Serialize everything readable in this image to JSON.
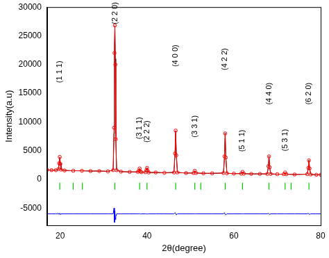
{
  "chart_data": {
    "type": "line",
    "x_label": "2θ(degree)",
    "y_label": "Intensity(a.u)",
    "xlim": [
      17,
      80
    ],
    "xticks": [
      20,
      40,
      60,
      80
    ],
    "ylim": [
      -8000,
      30000
    ],
    "yticks": [
      -5000,
      0,
      5000,
      10000,
      15000,
      20000,
      25000,
      30000
    ],
    "grid": false,
    "x": [
      17,
      18,
      19,
      19.6,
      19.75,
      19.9,
      20.05,
      20.2,
      21,
      23,
      25,
      27,
      29,
      31,
      32.2,
      32.4,
      32.5,
      32.6,
      32.7,
      32.8,
      33,
      34,
      36,
      37.9,
      38.15,
      38.3,
      38.45,
      38.7,
      39.6,
      39.85,
      40.0,
      40.15,
      40.4,
      42,
      44,
      46.2,
      46.45,
      46.6,
      46.75,
      47.0,
      49,
      50.7,
      51.0,
      51.3,
      53,
      55,
      57.6,
      57.85,
      58.0,
      58.15,
      58.4,
      60,
      61.7,
      62.0,
      62.3,
      64,
      66,
      67.7,
      67.95,
      68.1,
      68.25,
      68.5,
      70,
      71.5,
      71.8,
      72.1,
      74,
      76.9,
      77.15,
      77.3,
      77.45,
      77.7,
      79,
      80
    ],
    "series": [
      {
        "color": "#ff0000",
        "marker": "circle",
        "line_style": "solid",
        "values": [
          1650,
          1600,
          1600,
          1800,
          2800,
          3900,
          2700,
          1700,
          1550,
          1500,
          1500,
          1450,
          1450,
          1400,
          1600,
          9000,
          22000,
          26800,
          20000,
          7000,
          1600,
          1350,
          1300,
          1300,
          1500,
          1900,
          1400,
          1250,
          1250,
          1600,
          2000,
          1500,
          1200,
          1200,
          1150,
          1200,
          4500,
          8500,
          4200,
          1200,
          1100,
          1100,
          1500,
          1100,
          1050,
          1050,
          1100,
          4000,
          8000,
          3800,
          1050,
          1000,
          1000,
          1300,
          1000,
          950,
          950,
          950,
          2300,
          4000,
          2100,
          950,
          900,
          900,
          1200,
          900,
          850,
          900,
          2000,
          3300,
          1900,
          850,
          800,
          800
        ]
      },
      {
        "color": "#000000",
        "marker": "none",
        "line_style": "solid",
        "values": [
          1650,
          1600,
          1600,
          1750,
          2900,
          3800,
          2800,
          1700,
          1550,
          1500,
          1500,
          1450,
          1450,
          1400,
          1600,
          8000,
          23500,
          26300,
          21000,
          7500,
          1600,
          1350,
          1300,
          1300,
          1500,
          1850,
          1450,
          1250,
          1250,
          1600,
          2050,
          1500,
          1200,
          1200,
          1150,
          1200,
          4300,
          8400,
          4400,
          1200,
          1100,
          1100,
          1500,
          1100,
          1050,
          1050,
          1100,
          3800,
          8100,
          4000,
          1050,
          1000,
          1000,
          1300,
          1000,
          950,
          950,
          950,
          2200,
          4050,
          2200,
          950,
          900,
          900,
          1200,
          900,
          850,
          900,
          1900,
          3350,
          2000,
          850,
          800,
          800
        ]
      },
      {
        "color": "#0000ff",
        "marker": "none",
        "line_style": "solid",
        "values": [
          -6000,
          -6000,
          -6000,
          -5950,
          -6100,
          -5900,
          -6100,
          -6000,
          -6000,
          -6000,
          -6000,
          -6000,
          -6000,
          -6000,
          -6000,
          -5000,
          -7500,
          -5500,
          -7000,
          -6500,
          -6000,
          -6000,
          -6000,
          -6000,
          -6000,
          -5950,
          -6050,
          -6000,
          -6000,
          -6000,
          -6050,
          -6000,
          -6000,
          -6000,
          -6000,
          -6000,
          -5800,
          -5900,
          -6200,
          -6000,
          -6000,
          -6000,
          -6000,
          -6000,
          -6000,
          -6000,
          -6000,
          -5800,
          -6100,
          -6200,
          -6000,
          -6000,
          -6000,
          -6000,
          -6000,
          -6000,
          -6000,
          -6000,
          -5900,
          -6050,
          -6100,
          -6000,
          -6000,
          -6000,
          -6000,
          -6000,
          -6000,
          -6000,
          -5900,
          -6050,
          -6100,
          -6000,
          -6000,
          -6000
        ]
      }
    ],
    "bragg_positions": {
      "color": "#00cc00",
      "marker": "line",
      "y": -1200,
      "x": [
        19.9,
        23.0,
        25.1,
        32.6,
        38.3,
        40.0,
        46.6,
        51.0,
        52.4,
        58.0,
        62.0,
        68.1,
        71.8,
        73.2,
        77.3
      ]
    },
    "annotations": [
      {
        "text": "(1 1 1)",
        "x": 19.9,
        "y": 16800
      },
      {
        "text": "(2 2 0)",
        "x": 32.6,
        "y": 27000
      },
      {
        "text": "(3 1 1)",
        "x": 38.3,
        "y": 7000
      },
      {
        "text": "(2 2 2)",
        "x": 40.0,
        "y": 6400
      },
      {
        "text": "(4 0 0)",
        "x": 46.6,
        "y": 19600
      },
      {
        "text": "(3 3 1)",
        "x": 51.0,
        "y": 7300
      },
      {
        "text": "(4 2 2)",
        "x": 58.0,
        "y": 19000
      },
      {
        "text": "(5 1 1)",
        "x": 62.0,
        "y": 4800
      },
      {
        "text": "(4 4 0)",
        "x": 68.1,
        "y": 13000
      },
      {
        "text": "(5 3 1)",
        "x": 71.8,
        "y": 4900
      },
      {
        "text": "(6 2 0)",
        "x": 77.3,
        "y": 13000
      }
    ]
  }
}
